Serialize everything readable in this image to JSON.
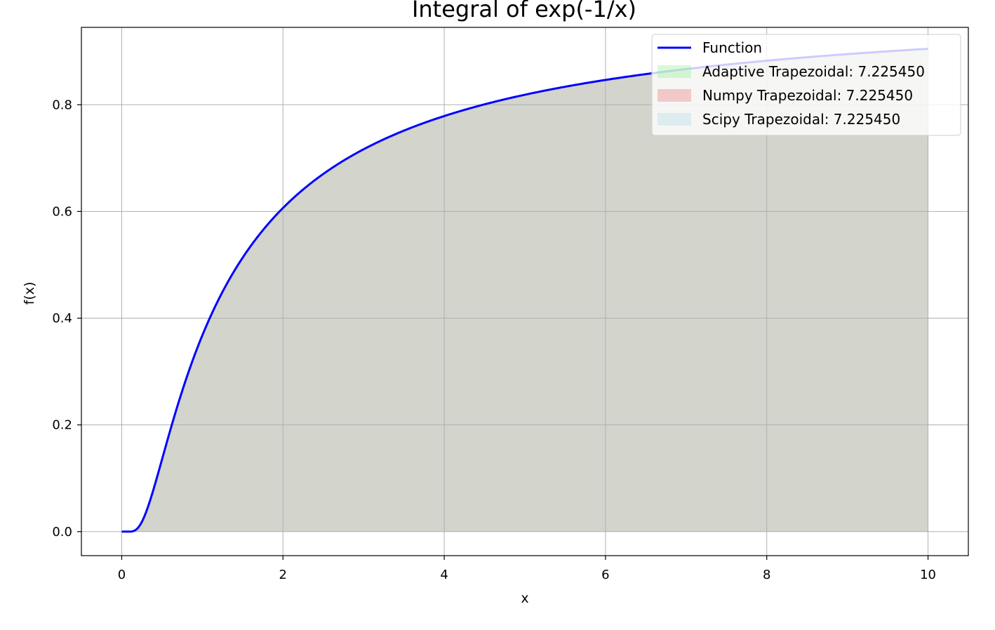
{
  "chart_data": {
    "type": "area",
    "title": "Integral of exp(-1/x)",
    "xlabel": "x",
    "ylabel": "f(x)",
    "xlim": [
      -0.5,
      10.5
    ],
    "ylim": [
      -0.045,
      0.945
    ],
    "xticks": [
      0,
      2,
      4,
      6,
      8,
      10
    ],
    "yticks": [
      0.0,
      0.2,
      0.4,
      0.6,
      0.8
    ],
    "xtick_labels": [
      "0",
      "2",
      "4",
      "6",
      "8",
      "10"
    ],
    "ytick_labels": [
      "0.0",
      "0.2",
      "0.4",
      "0.6",
      "0.8"
    ],
    "grid": true,
    "legend_position": "top-right",
    "function": {
      "expression": "exp(-1/x)",
      "x_range": [
        0,
        10
      ],
      "x": [
        0,
        0.1,
        0.2,
        0.3,
        0.4,
        0.5,
        0.75,
        1,
        1.5,
        2,
        2.5,
        3,
        4,
        5,
        6,
        7,
        8,
        9,
        10
      ],
      "y": [
        0,
        4.54e-05,
        0.00674,
        0.0357,
        0.0821,
        0.1353,
        0.2636,
        0.3679,
        0.5134,
        0.6065,
        0.6703,
        0.7165,
        0.7788,
        0.8187,
        0.8465,
        0.8669,
        0.8825,
        0.8948,
        0.9048
      ]
    },
    "series": [
      {
        "name": "Function",
        "kind": "line",
        "color": "#0000ff"
      },
      {
        "name": "Adaptive Trapezoidal: 7.225450",
        "kind": "fill",
        "color": "#90ee90",
        "alpha": 0.3
      },
      {
        "name": "Numpy Trapezoidal: 7.225450",
        "kind": "fill",
        "color": "#e06060",
        "alpha": 0.25
      },
      {
        "name": "Scipy Trapezoidal: 7.225450",
        "kind": "fill",
        "color": "#add8e6",
        "alpha": 0.3
      }
    ],
    "fill_color_composite": "#d3d3cc"
  }
}
